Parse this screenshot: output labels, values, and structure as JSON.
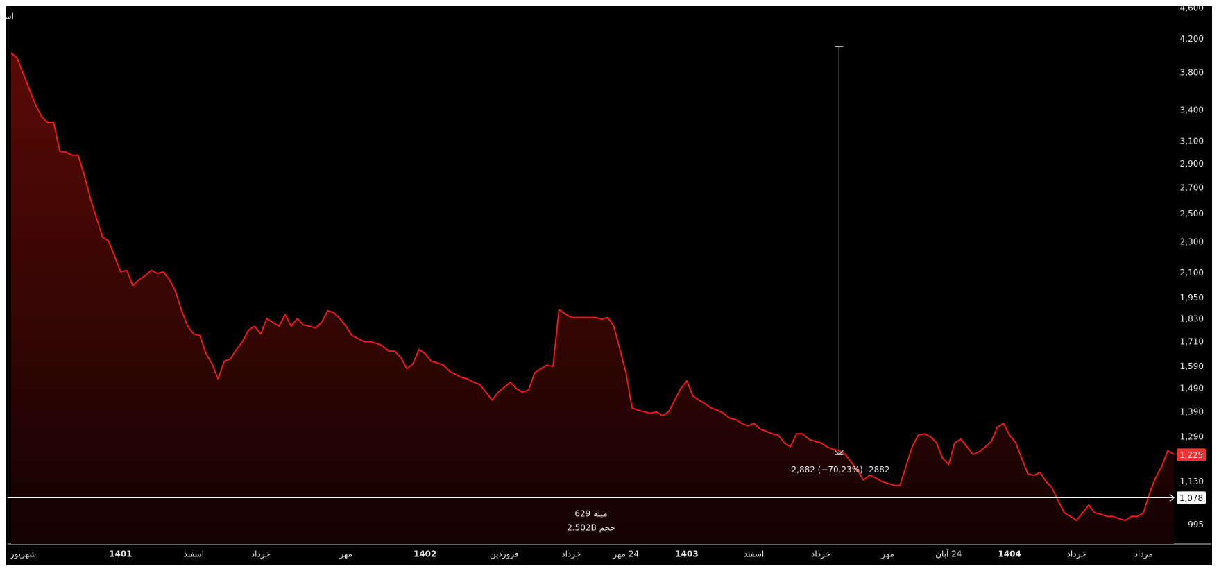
{
  "chart_data": {
    "type": "area",
    "title": "استقلال, فرابورس پایه",
    "log_scale": true,
    "grid": false,
    "series": [
      {
        "color": "#ff1a1a",
        "values": [
          4034,
          3969,
          3790,
          3620,
          3457,
          3340,
          3278,
          3278,
          3011,
          3004,
          2977,
          2977,
          2809,
          2622,
          2475,
          2336,
          2309,
          2206,
          2106,
          2116,
          2021,
          2059,
          2082,
          2116,
          2097,
          2106,
          2059,
          1989,
          1877,
          1793,
          1752,
          1744,
          1653,
          1604,
          1533,
          1616,
          1627,
          1673,
          1712,
          1772,
          1793,
          1752,
          1834,
          1813,
          1793,
          1856,
          1793,
          1834,
          1800,
          1793,
          1784,
          1813,
          1877,
          1867,
          1834,
          1793,
          1744,
          1728,
          1712,
          1712,
          1704,
          1692,
          1665,
          1665,
          1635,
          1580,
          1604,
          1673,
          1653,
          1616,
          1608,
          1598,
          1569,
          1554,
          1540,
          1533,
          1518,
          1508,
          1474,
          1440,
          1474,
          1497,
          1518,
          1491,
          1474,
          1484,
          1561,
          1580,
          1598,
          1591,
          1883,
          1860,
          1840,
          1840,
          1840,
          1840,
          1840,
          1830,
          1840,
          1793,
          1673,
          1561,
          1407,
          1398,
          1391,
          1385,
          1391,
          1375,
          1391,
          1440,
          1491,
          1525,
          1457,
          1440,
          1424,
          1407,
          1398,
          1385,
          1365,
          1360,
          1344,
          1334,
          1344,
          1322,
          1313,
          1303,
          1298,
          1269,
          1254,
          1303,
          1303,
          1283,
          1274,
          1269,
          1254,
          1245,
          1240,
          1226,
          1198,
          1170,
          1136,
          1152,
          1144,
          1131,
          1125,
          1118,
          1118,
          1184,
          1254,
          1298,
          1303,
          1292,
          1269,
          1212,
          1190,
          1269,
          1283,
          1254,
          1226,
          1235,
          1254,
          1274,
          1329,
          1344,
          1298,
          1269,
          1212,
          1157,
          1152,
          1162,
          1131,
          1110,
          1067,
          1031,
          1020,
          1008,
          1031,
          1055,
          1031,
          1027,
          1020,
          1020,
          1013,
          1008,
          1020,
          1020,
          1031,
          1093,
          1144,
          1184,
          1240,
          1225
        ]
      }
    ],
    "xlim": [
      0,
      191
    ],
    "xticks": [
      {
        "value": 2,
        "label": "شهریور"
      },
      {
        "value": 18,
        "label": "1401"
      },
      {
        "value": 30,
        "label": "اسفند"
      },
      {
        "value": 41,
        "label": "خرداد"
      },
      {
        "value": 55,
        "label": "مهر"
      },
      {
        "value": 68,
        "label": "1402"
      },
      {
        "value": 81,
        "label": "فروردین"
      },
      {
        "value": 92,
        "label": "خرداد"
      },
      {
        "value": 101,
        "label": "24 مهر"
      },
      {
        "value": 111,
        "label": "1403"
      },
      {
        "value": 122,
        "label": "اسفند"
      },
      {
        "value": 133,
        "label": "خرداد"
      },
      {
        "value": 144,
        "label": "مهر"
      },
      {
        "value": 154,
        "label": "24 آبان"
      },
      {
        "value": 164,
        "label": "1404"
      },
      {
        "value": 175,
        "label": "خرداد"
      },
      {
        "value": 186,
        "label": "مرداد"
      }
    ],
    "ylim": [
      940,
      4630
    ],
    "yticks": [
      995,
      {
        "value": 1130,
        "label": "1,130"
      },
      {
        "value": 1290,
        "label": "1,290"
      },
      {
        "value": 1390,
        "label": "1,390"
      },
      {
        "value": 1490,
        "label": "1,490"
      },
      {
        "value": 1590,
        "label": "1,590"
      },
      {
        "value": 1710,
        "label": "1,710"
      },
      {
        "value": 1830,
        "label": "1,830"
      },
      {
        "value": 1950,
        "label": "1,950"
      },
      {
        "value": 2100,
        "label": "2,100"
      },
      {
        "value": 2300,
        "label": "2,300"
      },
      {
        "value": 2500,
        "label": "2,500"
      },
      {
        "value": 2700,
        "label": "2,700"
      },
      {
        "value": 2900,
        "label": "2,900"
      },
      {
        "value": 3100,
        "label": "3,100"
      },
      {
        "value": 3400,
        "label": "3,400"
      },
      {
        "value": 3800,
        "label": "3,800"
      },
      {
        "value": 4200,
        "label": "4,200"
      },
      {
        "value": 4600,
        "label": "4,600"
      }
    ],
    "last_price": {
      "value": 1225,
      "label": "1,225",
      "color": "#f23030"
    },
    "reference_line": {
      "value": 1078,
      "label": "1,078"
    },
    "measure": {
      "x": 136,
      "from": 4107,
      "to": 1225,
      "label": "-2,882 (−70.23%) -2882"
    },
    "volume": {
      "bars_label": "میله 629",
      "volume_label": "حجم 2.502B"
    }
  }
}
